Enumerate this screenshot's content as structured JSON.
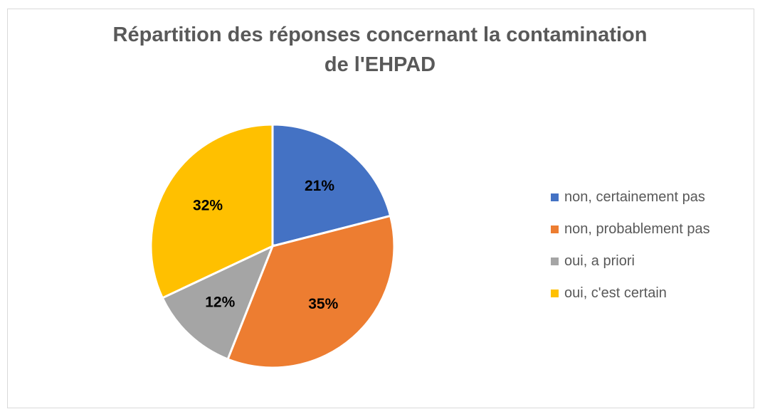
{
  "chart_data": {
    "type": "pie",
    "title": "Répartition des réponses concernant la contamination de l'EHPAD",
    "title_lines": [
      "Répartition des réponses concernant la contamination",
      "de l'EHPAD"
    ],
    "categories": [
      "non, certainement pas",
      "non, probablement pas",
      "oui, a priori",
      "oui, c'est certain"
    ],
    "values": [
      21,
      35,
      12,
      32
    ],
    "labels": [
      "21%",
      "35%",
      "12%",
      "32%"
    ],
    "colors": [
      "#4472C4",
      "#ED7D31",
      "#A5A5A5",
      "#FFC000"
    ],
    "legend": "right"
  }
}
